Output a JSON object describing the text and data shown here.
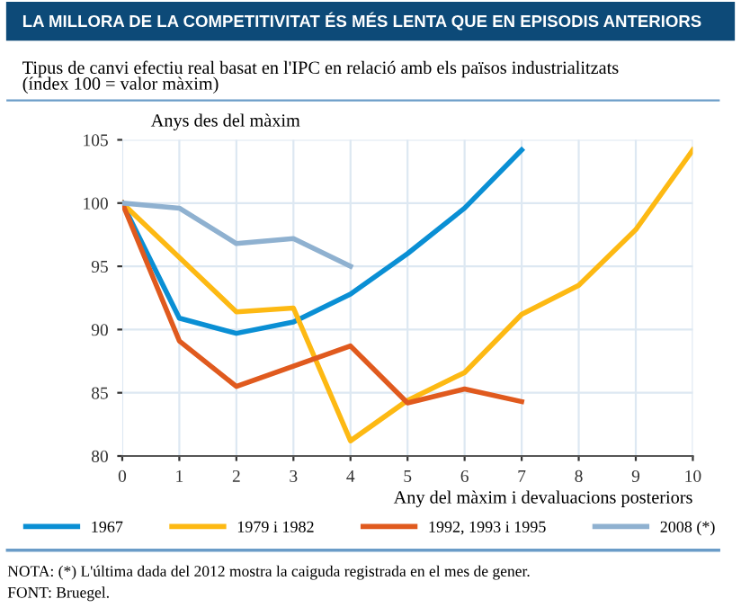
{
  "chart_data": {
    "type": "line",
    "title": "LA MILLORA DE LA COMPETITIVITAT ÉS MÉS LENTA QUE EN EPISODIS ANTERIORS",
    "subtitle": "Tipus de canvi efectiu real basat en l'IPC en relació amb els països industrialitzats\n(índex 100 = valor màxim)",
    "ylabel": "Anys des del màxim",
    "xlabel": "Any del màxim i devaluacions posteriors",
    "x": [
      0,
      1,
      2,
      3,
      4,
      5,
      6,
      7,
      8,
      9,
      10
    ],
    "series": [
      {
        "name": "1967",
        "color": "#0a8fd4",
        "values": [
          100,
          90.9,
          89.7,
          90.6,
          92.8,
          96.0,
          99.6,
          104.2,
          null,
          null,
          null
        ]
      },
      {
        "name": "1979 i 1982",
        "color": "#fdb913",
        "values": [
          100,
          95.7,
          91.4,
          91.7,
          81.2,
          84.4,
          86.6,
          91.2,
          93.5,
          97.9,
          104.2
        ]
      },
      {
        "name": "1992, 1993 i 1995",
        "color": "#e05a1e",
        "values": [
          100,
          89.1,
          85.5,
          87.1,
          88.7,
          84.2,
          85.3,
          84.3,
          null,
          null,
          null
        ]
      },
      {
        "name": "2008 (*)",
        "color": "#8fb1d0",
        "values": [
          100,
          99.6,
          96.8,
          97.2,
          95.0,
          null,
          null,
          null,
          null,
          null,
          null
        ]
      }
    ],
    "xlim": [
      0,
      10
    ],
    "xticks": [
      0,
      1,
      2,
      3,
      4,
      5,
      6,
      7,
      8,
      9,
      10
    ],
    "ylim": [
      80,
      105
    ],
    "yticks": [
      80,
      85,
      90,
      95,
      100,
      105
    ],
    "grid": true,
    "legend": "bottom",
    "marker": "none",
    "line_style": "solid",
    "annotations": [
      "NOTA: (*) L'última dada del 2012 mostra la caiguda registrada en el mes de gener.",
      "FONT: Bruegel."
    ]
  }
}
